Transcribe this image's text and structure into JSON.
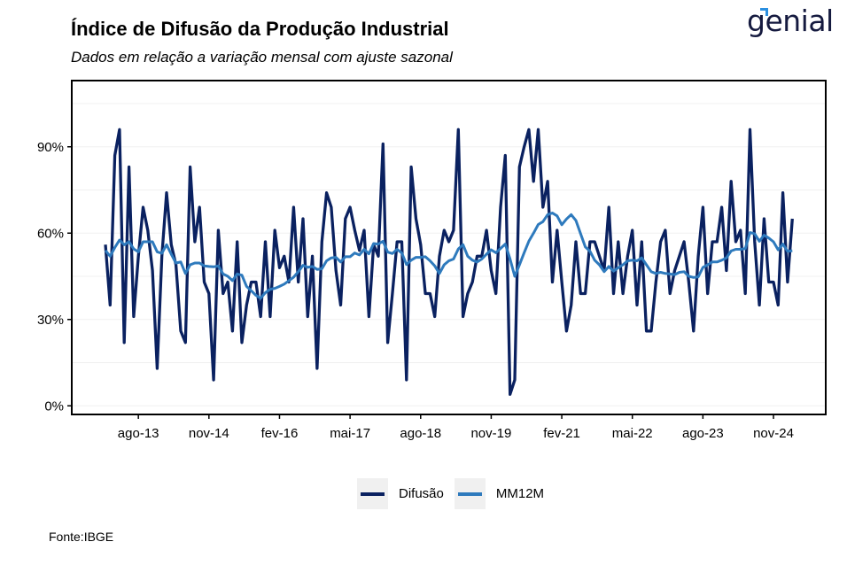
{
  "header": {
    "title": "Índice de Difusão da Produção Industrial",
    "subtitle": "Dados em relação a variação mensal com ajuste sazonal",
    "logo_text": "genial"
  },
  "footer": {
    "source": "Fonte:IBGE"
  },
  "colors": {
    "difusao": "#0a2160",
    "mm12m": "#2e7abd",
    "grid": "#f0f0f0"
  },
  "chart_data": {
    "type": "line",
    "title": "Índice de Difusão da Produção Industrial",
    "xlabel": "",
    "ylabel": "",
    "x_start": "jan-13",
    "x_frequency": "monthly",
    "ylim": [
      -3,
      113
    ],
    "y_ticks": [
      0,
      30,
      60,
      90
    ],
    "y_tick_labels": [
      "0%",
      "30%",
      "60%",
      "90%"
    ],
    "x_ticks": [
      {
        "month_index": 7,
        "label": "ago-13"
      },
      {
        "month_index": 22,
        "label": "nov-14"
      },
      {
        "month_index": 37,
        "label": "fev-16"
      },
      {
        "month_index": 52,
        "label": "mai-17"
      },
      {
        "month_index": 67,
        "label": "ago-18"
      },
      {
        "month_index": 82,
        "label": "nov-19"
      },
      {
        "month_index": 97,
        "label": "fev-21"
      },
      {
        "month_index": 112,
        "label": "mai-22"
      },
      {
        "month_index": 127,
        "label": "ago-23"
      },
      {
        "month_index": 142,
        "label": "nov-24"
      }
    ],
    "grid": true,
    "legend_position": "bottom",
    "series": [
      {
        "name": "Difusão",
        "values": [
          56,
          35,
          87,
          96,
          22,
          83,
          31,
          52,
          69,
          61,
          47,
          13,
          52,
          74,
          56,
          49,
          26,
          22,
          83,
          57,
          69,
          43,
          39,
          9,
          61,
          39,
          43,
          26,
          57,
          22,
          35,
          43,
          43,
          31,
          57,
          31,
          61,
          48,
          52,
          43,
          69,
          43,
          65,
          31,
          52,
          13,
          57,
          74,
          69,
          47,
          35,
          65,
          69,
          61,
          54,
          61,
          31,
          56,
          52,
          91,
          22,
          39,
          57,
          57,
          9,
          83,
          65,
          56,
          39,
          39,
          31,
          52,
          61,
          57,
          61,
          96,
          31,
          39,
          43,
          52,
          52,
          61,
          47,
          39,
          69,
          87,
          4,
          9,
          83,
          90,
          96,
          78,
          96,
          69,
          78,
          43,
          61,
          43,
          26,
          35,
          57,
          39,
          39,
          57,
          57,
          52,
          47,
          69,
          39,
          57,
          39,
          52,
          61,
          35,
          57,
          26,
          26,
          43,
          57,
          61,
          39,
          47,
          52,
          57,
          43,
          26,
          52,
          69,
          39,
          57,
          57,
          69,
          47,
          78,
          57,
          61,
          39,
          96,
          57,
          35,
          65,
          43,
          43,
          35,
          74,
          43,
          65
        ]
      },
      {
        "name": "MM12M",
        "values": [
          54,
          52,
          55,
          57.6,
          56,
          57,
          54.5,
          53.5,
          57,
          57,
          57,
          53.5,
          53,
          56,
          52.7,
          49.6,
          50,
          46,
          49,
          49.6,
          49.6,
          48.6,
          48.4,
          48.3,
          48.6,
          45.8,
          45,
          43.5,
          45.8,
          45.4,
          41.5,
          40,
          38.4,
          37.4,
          39.3,
          40.5,
          40.8,
          41.5,
          42.3,
          43.5,
          44.7,
          46.6,
          48.8,
          48.1,
          48.4,
          47.4,
          47.6,
          50.4,
          51.4,
          51.6,
          50,
          51.8,
          51.8,
          53.1,
          52.4,
          54.4,
          52.8,
          56.4,
          56.2,
          57.2,
          53.4,
          52.9,
          54.4,
          53.1,
          49.1,
          50.6,
          51.6,
          51.6,
          51.8,
          50.4,
          48.6,
          46,
          49,
          50.4,
          51,
          54.5,
          56,
          52,
          50.6,
          50,
          51,
          52.7,
          54.2,
          53.2,
          54.7,
          56.2,
          51,
          45,
          49,
          53.2,
          57.2,
          60,
          63,
          64,
          66.4,
          67,
          66,
          62.9,
          64.9,
          66.4,
          64.4,
          59.8,
          55.2,
          53.7,
          50.6,
          49,
          46.6,
          48.4,
          46.8,
          48,
          49,
          50.4,
          50.6,
          50.4,
          51.4,
          49,
          46.6,
          46,
          46.4,
          46,
          45.8,
          45.6,
          46.4,
          46.6,
          45,
          44.6,
          44.8,
          48.1,
          49,
          50,
          50,
          50.6,
          51.4,
          53.8,
          54.4,
          54.4,
          54.6,
          60.2,
          59.8,
          57.2,
          59.3,
          58.3,
          57,
          54.2,
          56.2,
          53.7,
          53.9
        ]
      }
    ]
  }
}
